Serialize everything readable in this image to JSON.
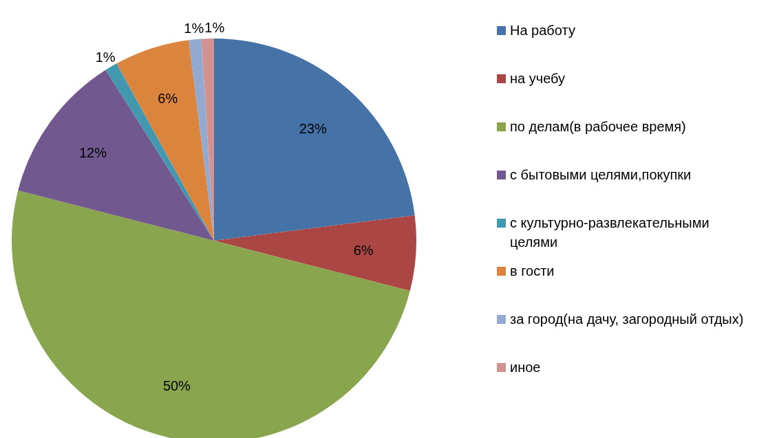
{
  "chart_data": {
    "type": "pie",
    "categories": [
      "На работу",
      "на учебу",
      "по делам(в рабочее время)",
      "с бытовыми целями,покупки",
      "с культурно-развлекательными целями",
      "в гости",
      "за город(на дачу, загородный отдых)",
      "иное"
    ],
    "values": [
      23,
      6,
      50,
      12,
      1,
      6,
      1,
      1
    ],
    "colors": [
      "#4572a7",
      "#aa4643",
      "#89a54e",
      "#71588f",
      "#4198af",
      "#db843d",
      "#93a9cf",
      "#d19392"
    ],
    "value_labels": [
      "23%",
      "6%",
      "50%",
      "12%",
      "1%",
      "6%",
      "1%",
      "1%"
    ],
    "legend": "right"
  }
}
